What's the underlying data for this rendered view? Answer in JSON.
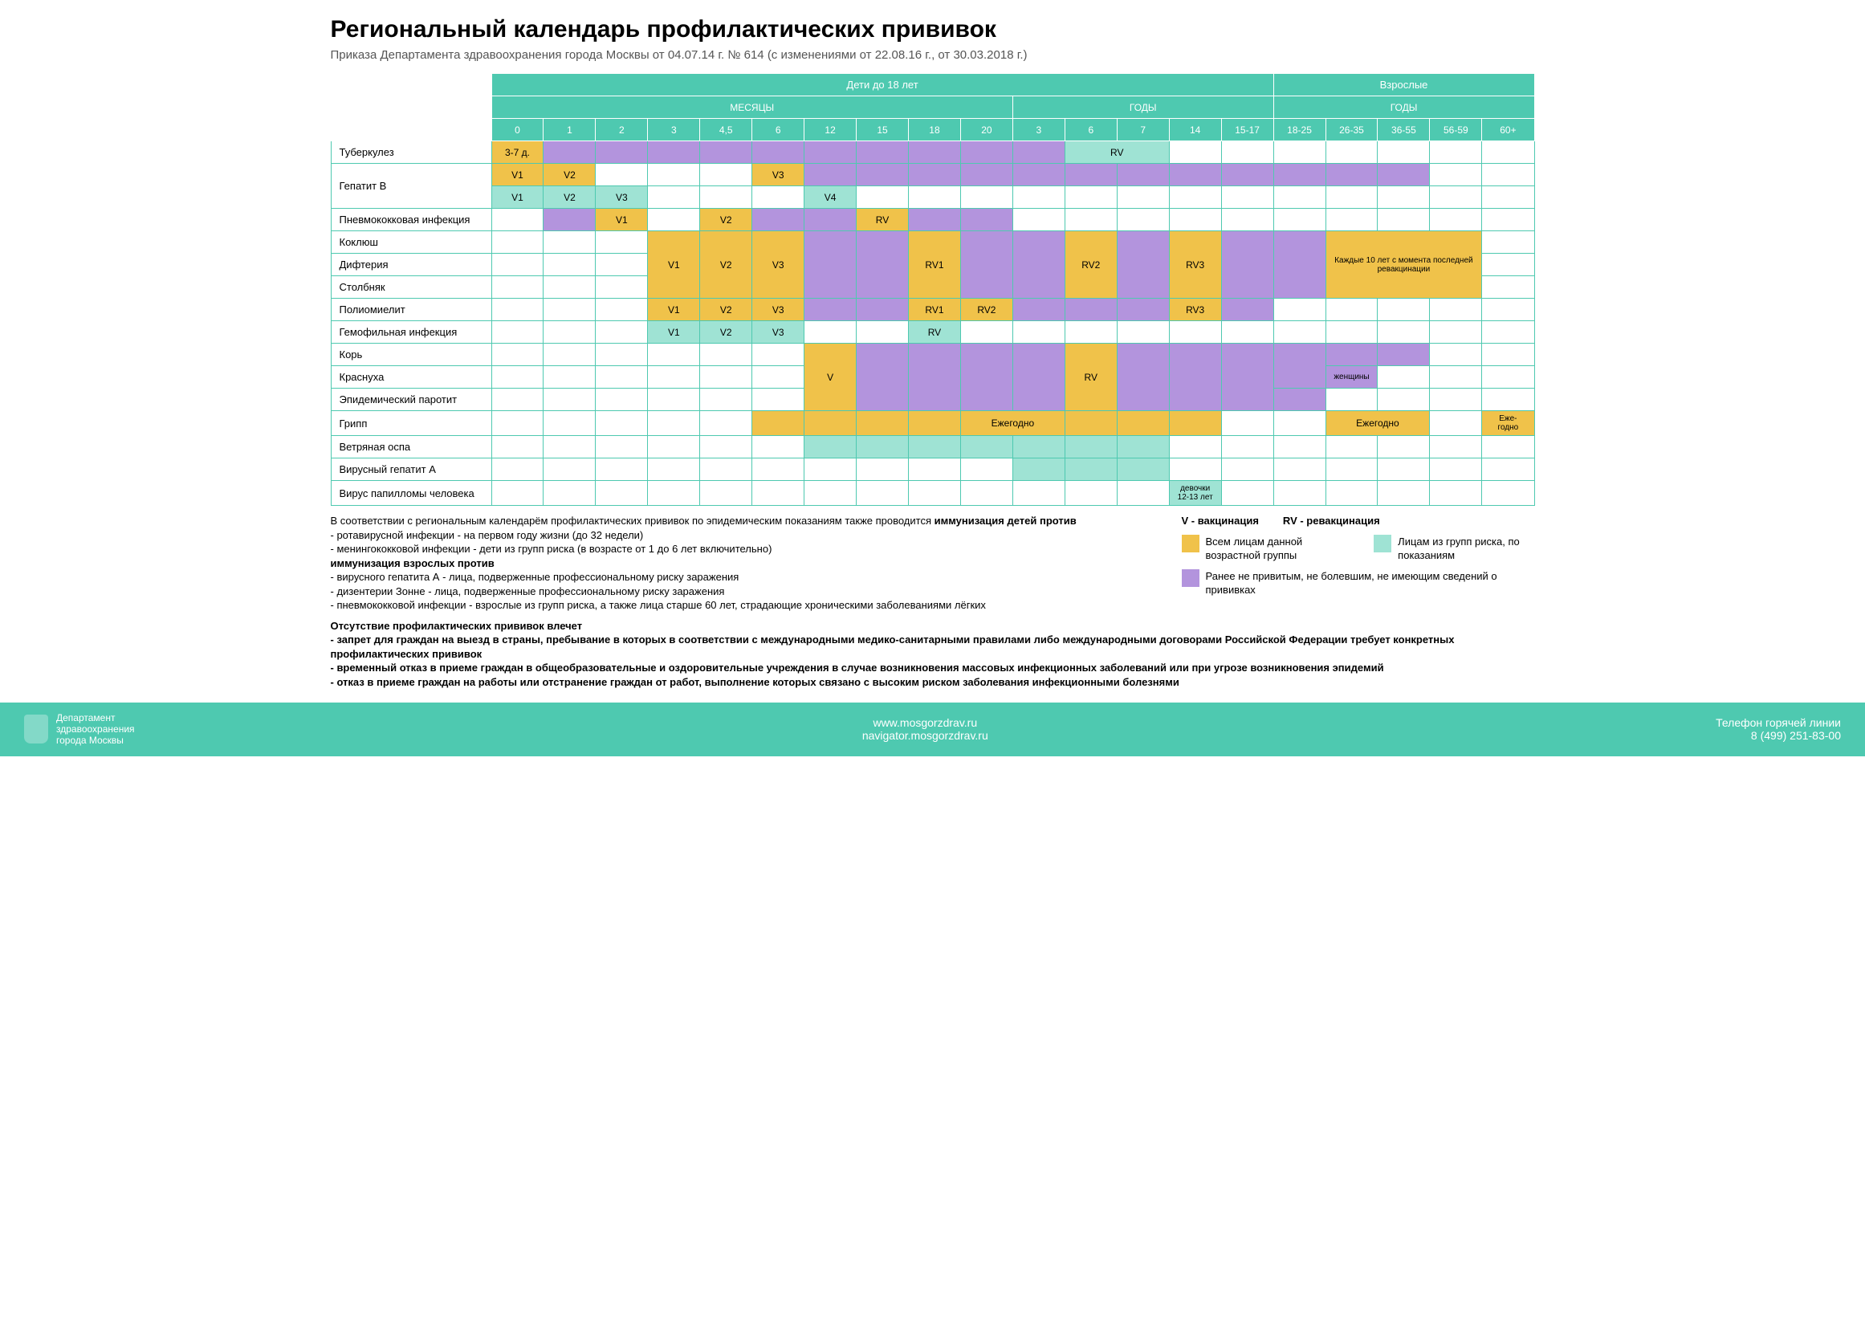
{
  "title": "Региональный календарь профилактических прививок",
  "subtitle": "Приказа Департамента здравоохранения города Москвы от 04.07.14 г. № 614 (с изменениями от 22.08.16 г., от 30.03.2018 г.)",
  "colors": {
    "teal": "#4ec9b0",
    "teal_light": "#9fe3d4",
    "yellow": "#f0c24a",
    "purple": "#b394dd",
    "border": "#4ec9b0"
  },
  "header": {
    "top": [
      {
        "label": "Дети до 18 лет",
        "span": 15
      },
      {
        "label": "Взрослые",
        "span": 5
      }
    ],
    "mid": [
      {
        "label": "МЕСЯЦЫ",
        "span": 10
      },
      {
        "label": "ГОДЫ",
        "span": 5
      },
      {
        "label": "ГОДЫ",
        "span": 5
      }
    ],
    "cols": [
      "0",
      "1",
      "2",
      "3",
      "4,5",
      "6",
      "12",
      "15",
      "18",
      "20",
      "3",
      "6",
      "7",
      "14",
      "15-17",
      "18-25",
      "26-35",
      "36-55",
      "56-59",
      "60+"
    ]
  },
  "rows": [
    {
      "label": "Туберкулез",
      "cells": [
        {
          "t": "3-7 д.",
          "c": "y"
        },
        {
          "c": "p"
        },
        {
          "c": "p"
        },
        {
          "c": "p"
        },
        {
          "c": "p"
        },
        {
          "c": "p"
        },
        {
          "c": "p"
        },
        {
          "c": "p"
        },
        {
          "c": "p"
        },
        {
          "c": "p"
        },
        {
          "c": "p"
        },
        {
          "t": "RV",
          "c": "t",
          "span": 2
        },
        null,
        {},
        {},
        {},
        {},
        {},
        {},
        {}
      ]
    },
    {
      "label": "Гепатит В",
      "sub": [
        [
          {
            "t": "V1",
            "c": "y"
          },
          {
            "t": "V2",
            "c": "y"
          },
          {
            "c": ""
          },
          {
            "c": ""
          },
          {
            "c": ""
          },
          {
            "t": "V3",
            "c": "y"
          },
          {
            "c": "p"
          },
          {
            "c": "p"
          },
          {
            "c": "p"
          },
          {
            "c": "p"
          },
          {
            "c": "p"
          },
          {
            "c": "p"
          },
          {
            "c": "p"
          },
          {
            "c": "p"
          },
          {
            "c": "p"
          },
          {
            "c": "p"
          },
          {
            "c": "p"
          },
          {
            "c": "p"
          },
          {},
          {}
        ],
        [
          {
            "t": "V1",
            "c": "t"
          },
          {
            "t": "V2",
            "c": "t"
          },
          {
            "t": "V3",
            "c": "t"
          },
          {},
          {},
          {},
          {
            "t": "V4",
            "c": "t"
          },
          {},
          {},
          {},
          {},
          {},
          {},
          {},
          {},
          {},
          {},
          {},
          {},
          {}
        ]
      ]
    },
    {
      "label": "Пневмококковая инфекция",
      "cells": [
        {},
        {
          "c": "p"
        },
        {
          "t": "V1",
          "c": "y"
        },
        {
          "c": ""
        },
        {
          "t": "V2",
          "c": "y"
        },
        {
          "c": "p"
        },
        {
          "c": "p"
        },
        {
          "t": "RV",
          "c": "y"
        },
        {
          "c": "p"
        },
        {
          "c": "p"
        },
        {},
        {},
        {},
        {},
        {},
        {},
        {},
        {},
        {},
        {}
      ]
    },
    {
      "label": "Коклюш",
      "cells": [
        {},
        {},
        {},
        {
          "c": "y",
          "rowspan": 3,
          "t": "V1"
        },
        {
          "c": "y",
          "rowspan": 3,
          "t": "V2"
        },
        {
          "c": "y",
          "rowspan": 3,
          "t": "V3"
        },
        {
          "c": "p",
          "rowspan": 3
        },
        {
          "c": "p",
          "rowspan": 3
        },
        {
          "c": "y",
          "rowspan": 3,
          "t": "RV1"
        },
        {
          "c": "p",
          "rowspan": 3
        },
        {
          "c": "p",
          "rowspan": 3
        },
        {
          "c": "y",
          "rowspan": 3,
          "t": "RV2"
        },
        {
          "c": "p",
          "rowspan": 3
        },
        {
          "c": "y",
          "rowspan": 3,
          "t": "RV3"
        },
        {
          "c": "p",
          "rowspan": 3
        },
        {
          "c": "p",
          "rowspan": 3
        },
        {
          "c": "y",
          "rowspan": 3,
          "span": 3,
          "t": "Каждые 10 лет с момента последней ревакцинации",
          "small": true
        },
        null,
        null,
        {}
      ]
    },
    {
      "label": "Дифтерия",
      "cells": [
        {},
        {},
        {},
        null,
        null,
        null,
        null,
        null,
        null,
        null,
        null,
        null,
        null,
        null,
        null,
        null,
        null,
        null,
        null,
        {}
      ]
    },
    {
      "label": "Столбняк",
      "cells": [
        {},
        {},
        {},
        null,
        null,
        null,
        null,
        null,
        null,
        null,
        null,
        null,
        null,
        null,
        null,
        null,
        null,
        null,
        null,
        {}
      ]
    },
    {
      "label": "Полиомиелит",
      "cells": [
        {},
        {},
        {},
        {
          "t": "V1",
          "c": "y"
        },
        {
          "t": "V2",
          "c": "y"
        },
        {
          "t": "V3",
          "c": "y"
        },
        {
          "c": "p"
        },
        {
          "c": "p"
        },
        {
          "t": "RV1",
          "c": "y"
        },
        {
          "t": "RV2",
          "c": "y"
        },
        {
          "c": "p"
        },
        {
          "c": "p"
        },
        {
          "c": "p"
        },
        {
          "t": "RV3",
          "c": "y"
        },
        {
          "c": "p"
        },
        {},
        {},
        {},
        {},
        {}
      ]
    },
    {
      "label": "Гемофильная инфекция",
      "cells": [
        {},
        {},
        {},
        {
          "t": "V1",
          "c": "t"
        },
        {
          "t": "V2",
          "c": "t"
        },
        {
          "t": "V3",
          "c": "t"
        },
        {
          "c": ""
        },
        {
          "c": ""
        },
        {
          "t": "RV",
          "c": "t"
        },
        {},
        {},
        {},
        {},
        {},
        {},
        {},
        {},
        {},
        {},
        {}
      ]
    },
    {
      "label": "Корь",
      "cells": [
        {},
        {},
        {},
        {},
        {},
        {},
        {
          "c": "y",
          "rowspan": 3,
          "t": "V"
        },
        {
          "c": "p",
          "rowspan": 3
        },
        {
          "c": "p",
          "rowspan": 3
        },
        {
          "c": "p",
          "rowspan": 3
        },
        {
          "c": "p",
          "rowspan": 3
        },
        {
          "c": "y",
          "rowspan": 3,
          "t": "RV"
        },
        {
          "c": "p",
          "rowspan": 3
        },
        {
          "c": "p",
          "rowspan": 3
        },
        {
          "c": "p",
          "rowspan": 3
        },
        {
          "c": "p",
          "rowspan": 2
        },
        {
          "c": "p"
        },
        {
          "c": "p"
        },
        {},
        {}
      ]
    },
    {
      "label": "Краснуха",
      "cells": [
        {},
        {},
        {},
        {},
        {},
        {},
        null,
        null,
        null,
        null,
        null,
        null,
        null,
        null,
        null,
        null,
        {
          "t": "женщины",
          "c": "p",
          "small": true
        },
        {},
        {},
        {}
      ]
    },
    {
      "label": "Эпидемический паротит",
      "cells": [
        {},
        {},
        {},
        {},
        {},
        {},
        null,
        null,
        null,
        null,
        null,
        null,
        null,
        null,
        null,
        {
          "c": "p"
        },
        {},
        {},
        {},
        {}
      ]
    },
    {
      "label": "Грипп",
      "cells": [
        {},
        {},
        {},
        {},
        {},
        {
          "c": "y"
        },
        {
          "c": "y"
        },
        {
          "c": "y"
        },
        {
          "c": "y"
        },
        {
          "t": "Ежегодно",
          "c": "y",
          "span": 2,
          "small": false
        },
        null,
        {
          "c": "y"
        },
        {
          "c": "y"
        },
        {
          "c": "y"
        },
        {},
        {},
        {
          "t": "Ежегодно",
          "c": "y",
          "span": 2
        },
        null,
        {},
        {
          "t": "Еже-\nгодно",
          "c": "y",
          "small": true
        }
      ]
    },
    {
      "label": "Ветряная оспа",
      "cells": [
        {},
        {},
        {},
        {},
        {},
        {},
        {
          "c": "t"
        },
        {
          "c": "t"
        },
        {
          "c": "t"
        },
        {
          "c": "t"
        },
        {
          "c": "t"
        },
        {
          "c": "t"
        },
        {
          "c": "t"
        },
        {},
        {},
        {},
        {},
        {},
        {},
        {}
      ]
    },
    {
      "label": "Вирусный гепатит А",
      "cells": [
        {},
        {},
        {},
        {},
        {},
        {},
        {},
        {},
        {},
        {},
        {
          "c": "t"
        },
        {
          "c": "t"
        },
        {
          "c": "t"
        },
        {},
        {},
        {},
        {},
        {},
        {},
        {}
      ]
    },
    {
      "label": "Вирус папилломы человека",
      "cells": [
        {},
        {},
        {},
        {},
        {},
        {},
        {},
        {},
        {},
        {},
        {},
        {},
        {},
        {
          "t": "девочки\n12-13 лет",
          "c": "t",
          "small": true
        },
        {},
        {},
        {},
        {},
        {},
        {}
      ]
    }
  ],
  "notes": {
    "intro": "В соответствии с региональным календарём профилактических прививок по эпидемическим показаниям также проводится",
    "child_bold": "иммунизация детей против",
    "child_list": [
      "- ротавирусной инфекции - на первом году жизни (до 32 недели)",
      "- менингококковой инфекции - дети из групп риска (в возрасте от 1 до 6 лет включительно)"
    ],
    "adult_bold": "иммунизация взрослых против",
    "adult_list": [
      "- вирусного гепатита А - лица, подверженные профессиональному риску заражения",
      "- дизентерии Зонне - лица, подверженные профессиональному риску заражения",
      "- пневмококковой инфекции - взрослые из групп риска, а также лица старше 60 лет, страдающие хроническими заболеваниями лёгких"
    ]
  },
  "legend": {
    "v": "V - вакцинация",
    "rv": "RV - ревакцинация",
    "items": [
      {
        "c": "y",
        "text": "Всем лицам данной возрастной группы"
      },
      {
        "c": "t",
        "text": "Лицам из групп риска, по показаниям"
      },
      {
        "c": "p",
        "text": "Ранее не привитым, не болевшим, не имеющим сведений о прививках"
      }
    ]
  },
  "consequences": {
    "title": "Отсутствие профилактических прививок влечет",
    "list": [
      "- запрет для граждан на выезд в страны, пребывание в которых в соответствии с международными медико-санитарными правилами либо международными договорами Российской Федерации требует конкретных профилактических прививок",
      "- временный  отказ в приеме граждан в общеобразовательные и оздоровительные учреждения в случае возникновения массовых инфекционных заболеваний или при угрозе возникновения эпидемий",
      "- отказ в приеме граждан на работы или отстранение граждан от работ, выполнение которых связано с высоким риском заболевания инфекционными болезнями"
    ]
  },
  "footer": {
    "dept1": "Департамент",
    "dept2": "здравоохранения",
    "dept3": "города Москвы",
    "url1": "www.mosgorzdrav.ru",
    "url2": "navigator.mosgorzdrav.ru",
    "hotline": "Телефон горячей линии",
    "phone": "8 (499) 251-83-00"
  }
}
